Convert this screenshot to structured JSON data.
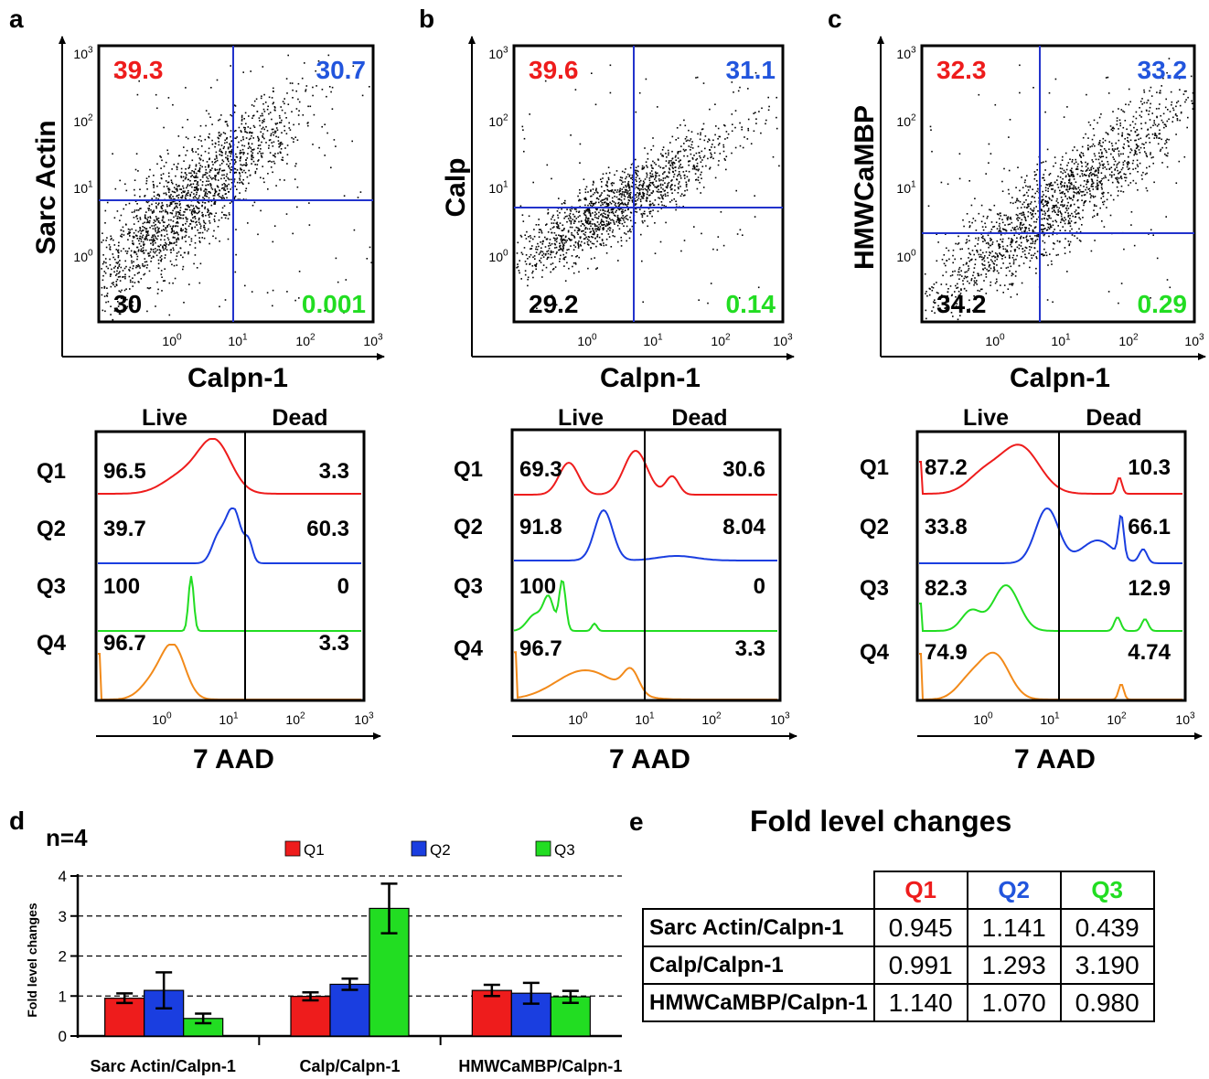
{
  "colors": {
    "q1": "#ee1c1c",
    "q2": "#1a3ee0",
    "q3": "#22dd22",
    "q4": "#f28a1a",
    "gate": "#2233cc",
    "text_q2": "#2255dd",
    "text_q3": "#22dd22"
  },
  "scatter_panels": [
    {
      "letter": "a",
      "ylabel": "Sarc Actin",
      "xlabel": "Calpn-1",
      "q1": "39.3",
      "q2": "30.7",
      "q3": "30",
      "q4": "0.001"
    },
    {
      "letter": "b",
      "ylabel": "Calp",
      "xlabel": "Calpn-1",
      "q1": "39.6",
      "q2": "31.1",
      "q3": "29.2",
      "q4": "0.14"
    },
    {
      "letter": "c",
      "ylabel": "HMWCaMBP",
      "xlabel": "Calpn-1",
      "q1": "32.3",
      "q2": "33.2",
      "q3": "34.2",
      "q4": "0.29"
    }
  ],
  "histogram_panels": [
    {
      "xlabel": "7 AAD",
      "live_label": "Live",
      "dead_label": "Dead",
      "rows": [
        {
          "name": "Q1",
          "live": "96.5",
          "dead": "3.3"
        },
        {
          "name": "Q2",
          "live": "39.7",
          "dead": "60.3"
        },
        {
          "name": "Q3",
          "live": "100",
          "dead": "0"
        },
        {
          "name": "Q4",
          "live": "96.7",
          "dead": "3.3"
        }
      ]
    },
    {
      "xlabel": "7 AAD",
      "live_label": "Live",
      "dead_label": "Dead",
      "rows": [
        {
          "name": "Q1",
          "live": "69.3",
          "dead": "30.6"
        },
        {
          "name": "Q2",
          "live": "91.8",
          "dead": "8.04"
        },
        {
          "name": "Q3",
          "live": "100",
          "dead": "0"
        },
        {
          "name": "Q4",
          "live": "96.7",
          "dead": "3.3"
        }
      ]
    },
    {
      "xlabel": "7 AAD",
      "live_label": "Live",
      "dead_label": "Dead",
      "rows": [
        {
          "name": "Q1",
          "live": "87.2",
          "dead": "10.3"
        },
        {
          "name": "Q2",
          "live": "33.8",
          "dead": "66.1"
        },
        {
          "name": "Q3",
          "live": "82.3",
          "dead": "12.9"
        },
        {
          "name": "Q4",
          "live": "74.9",
          "dead": "4.74"
        }
      ]
    }
  ],
  "log_ticks": {
    "bases": [
      "10",
      "10",
      "10",
      "10"
    ],
    "exps": [
      "0",
      "1",
      "2",
      "3"
    ]
  },
  "chart_data": {
    "type": "bar",
    "letter": "d",
    "annotation": "n=4",
    "ylabel": "Fold level changes",
    "xlabel": "",
    "categories": [
      "Sarc Actin/Calpn-1",
      "Calp/Calpn-1",
      "HMWCaMBP/Calpn-1"
    ],
    "series": [
      {
        "name": "Q1",
        "values": [
          0.945,
          0.991,
          1.14
        ],
        "errors": [
          0.12,
          0.1,
          0.14
        ]
      },
      {
        "name": "Q2",
        "values": [
          1.141,
          1.293,
          1.07
        ],
        "errors": [
          0.45,
          0.14,
          0.26
        ]
      },
      {
        "name": "Q3",
        "values": [
          0.439,
          3.19,
          0.98
        ],
        "errors": [
          0.12,
          0.62,
          0.15
        ]
      }
    ],
    "ylim": [
      0,
      4
    ],
    "yticks": [
      "0",
      "1",
      "2",
      "3",
      "4"
    ],
    "grid": "dashed horizontal",
    "legend": "top"
  },
  "table": {
    "letter": "e",
    "title": "Fold level changes",
    "headers": [
      "Q1",
      "Q2",
      "Q3"
    ],
    "rows": [
      {
        "label": "Sarc Actin/Calpn-1",
        "values": [
          "0.945",
          "1.141",
          "0.439"
        ]
      },
      {
        "label": "Calp/Calpn-1",
        "values": [
          "0.991",
          "1.293",
          "3.190"
        ]
      },
      {
        "label": "HMWCaMBP/Calpn-1",
        "values": [
          "1.140",
          "1.070",
          "0.980"
        ]
      }
    ]
  }
}
